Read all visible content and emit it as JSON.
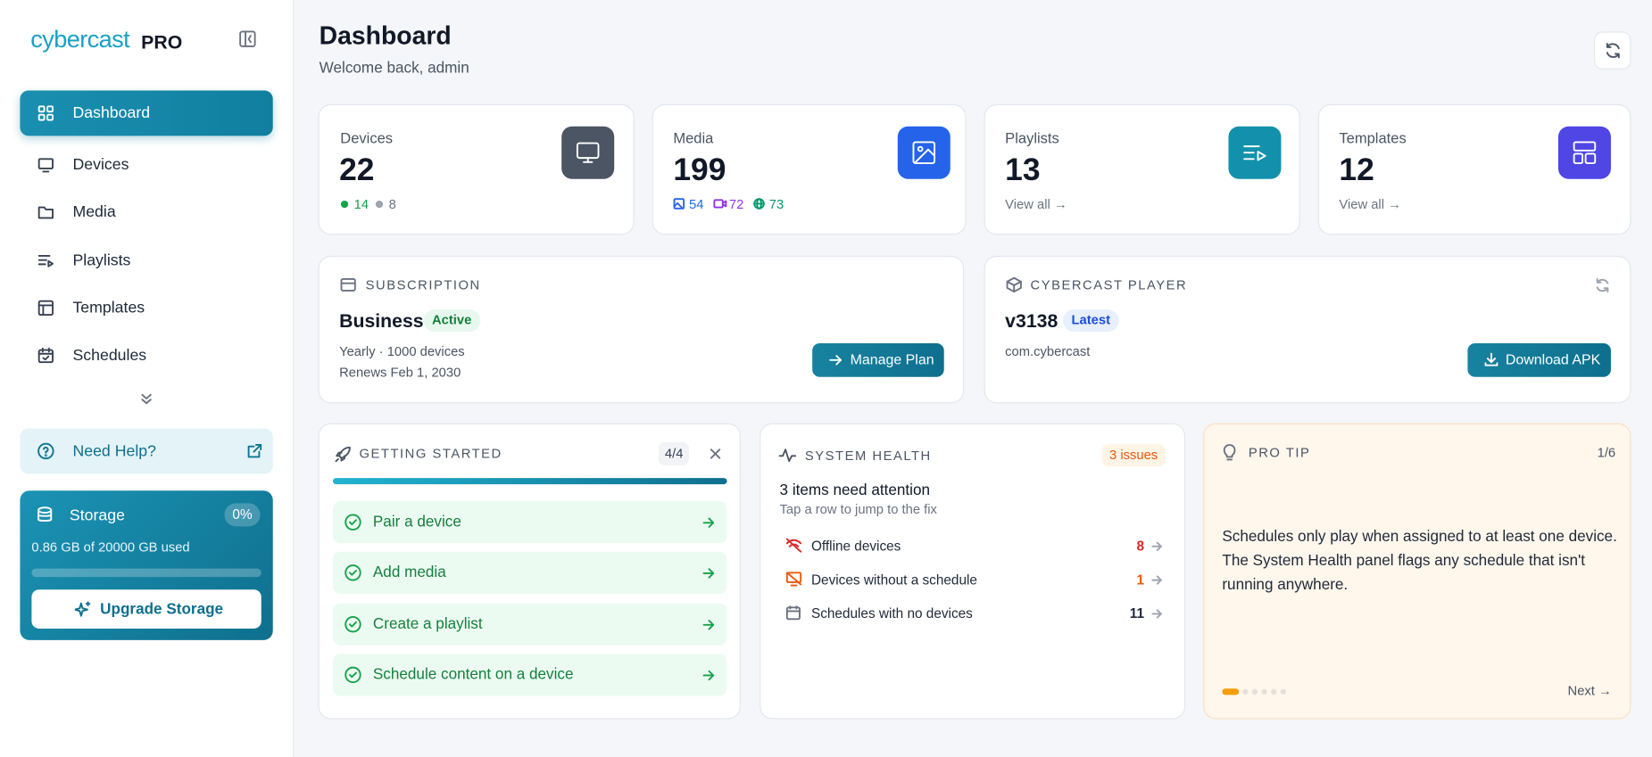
{
  "sidebar": {
    "logo": "cybercast",
    "logo_badge": "PRO",
    "nav": [
      "Dashboard",
      "Devices",
      "Media",
      "Playlists",
      "Templates",
      "Schedules"
    ],
    "help": "Need Help?",
    "storage": {
      "title": "Storage",
      "percent": "0%",
      "usage": "0.86 GB of 20000 GB used",
      "button": "Upgrade Storage"
    }
  },
  "header": {
    "title": "Dashboard",
    "subtitle": "Welcome back, admin"
  },
  "stats": [
    {
      "label": "Devices",
      "value": 22,
      "online": 14,
      "offline": 8
    },
    {
      "label": "Media",
      "value": 199,
      "images": 54,
      "videos": 72,
      "web": 73
    },
    {
      "label": "Playlists",
      "value": 13,
      "link": "View all →"
    },
    {
      "label": "Templates",
      "value": 12,
      "link": "View all →"
    }
  ],
  "subscription": {
    "heading": "SUBSCRIPTION",
    "plan": "Business",
    "status": "Active",
    "details": "Yearly · 1000 devices",
    "renewal": "Renews Feb 1, 2030",
    "button": "Manage Plan"
  },
  "player": {
    "heading": "CYBERCAST PLAYER",
    "version": "v3138",
    "badge": "Latest",
    "package": "com.cybercast",
    "button": "Download APK"
  },
  "getting_started": {
    "heading": "GETTING STARTED",
    "progress": "4/4",
    "steps": [
      "Pair a device",
      "Add media",
      "Create a playlist",
      "Schedule content on a device"
    ]
  },
  "system_health": {
    "heading": "SYSTEM HEALTH",
    "badge": "3 issues",
    "summary": "3 items need attention",
    "hint": "Tap a row to jump to the fix",
    "rows": [
      {
        "label": "Offline devices",
        "count": 8
      },
      {
        "label": "Devices without a schedule",
        "count": 1
      },
      {
        "label": "Schedules with no devices",
        "count": 11
      }
    ]
  },
  "pro_tip": {
    "heading": "PRO TIP",
    "counter": "1/6",
    "text": "Schedules only play when assigned to at least one device. The System Health panel flags any schedule that isn't running anywhere.",
    "next": "Next →"
  }
}
